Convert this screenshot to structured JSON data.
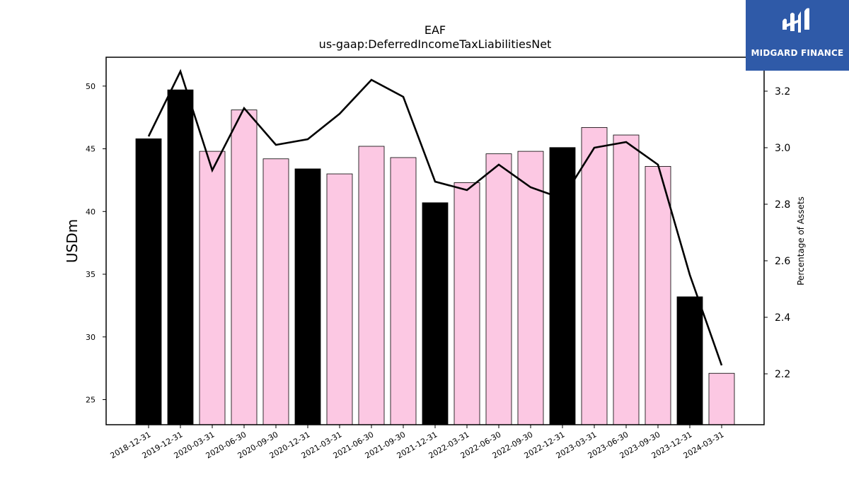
{
  "chart_data": {
    "type": "bar",
    "title": "EAF",
    "subtitle": "us-gaap:DeferredIncomeTaxLiabilitiesNet",
    "ylabel": "USDm",
    "y2label": "Percentage of Assets",
    "ylim": [
      23,
      52.3
    ],
    "y2lim": [
      2.02,
      3.32
    ],
    "yticks": [
      25,
      30,
      35,
      40,
      45,
      50
    ],
    "y2ticks": [
      2.2,
      2.4,
      2.6,
      2.8,
      3.0,
      3.2
    ],
    "y2tick_labels": [
      "2.2",
      "2.4",
      "2.6",
      "2.8",
      "3.0",
      "3.2"
    ],
    "categories": [
      "2018-12-31",
      "2019-12-31",
      "2020-03-31",
      "2020-06-30",
      "2020-09-30",
      "2020-12-31",
      "2021-03-31",
      "2021-06-30",
      "2021-09-30",
      "2021-12-31",
      "2022-03-31",
      "2022-06-30",
      "2022-09-30",
      "2022-12-31",
      "2023-03-31",
      "2023-06-30",
      "2023-09-30",
      "2023-12-31",
      "2024-03-31"
    ],
    "series": [
      {
        "kind": "bar",
        "values": [
          45.8,
          49.7,
          44.8,
          48.1,
          44.2,
          43.4,
          43.0,
          45.2,
          44.3,
          40.7,
          42.3,
          44.6,
          44.8,
          45.1,
          46.7,
          46.1,
          43.6,
          33.2,
          27.1
        ],
        "annual": [
          true,
          true,
          false,
          false,
          false,
          true,
          false,
          false,
          false,
          true,
          false,
          false,
          false,
          true,
          false,
          false,
          false,
          true,
          false
        ]
      },
      {
        "kind": "line",
        "axis": "right",
        "values": [
          3.04,
          3.27,
          2.92,
          3.14,
          3.01,
          3.03,
          3.12,
          3.24,
          3.18,
          2.88,
          2.85,
          2.94,
          2.86,
          2.82,
          3.0,
          3.02,
          2.94,
          2.55,
          2.23
        ]
      }
    ],
    "colors": {
      "annual_bar": "#000000",
      "quarter_bar": "#fcc8e3",
      "bar_edge": "#000000",
      "line": "#000000"
    },
    "grid": false,
    "legend": "none"
  },
  "logo": {
    "text": "MIDGARD FINANCE",
    "icon": "midgard-logo-icon",
    "background": "#2f5aa8"
  }
}
